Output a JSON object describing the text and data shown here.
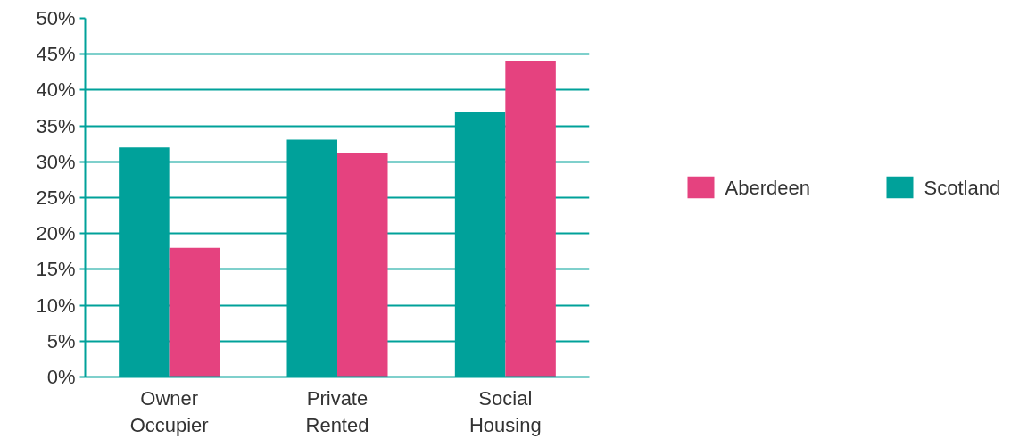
{
  "chart_data": {
    "type": "bar",
    "categories": [
      "Owner Occupier",
      "Private Rented",
      "Social Housing"
    ],
    "series": [
      {
        "name": "Scotland",
        "color": "#00a19a",
        "values": [
          32,
          33.1,
          37
        ]
      },
      {
        "name": "Aberdeen",
        "color": "#e5427f",
        "values": [
          18,
          31.2,
          44.1
        ]
      }
    ],
    "ylim": [
      0,
      50
    ],
    "yticks": [
      {
        "value": 0,
        "label": "0%"
      },
      {
        "value": 5,
        "label": "5%"
      },
      {
        "value": 10,
        "label": "10%"
      },
      {
        "value": 15,
        "label": "15%"
      },
      {
        "value": 20,
        "label": "20%"
      },
      {
        "value": 25,
        "label": "25%"
      },
      {
        "value": 30,
        "label": "30%"
      },
      {
        "value": 35,
        "label": "35%"
      },
      {
        "value": 40,
        "label": "40%"
      },
      {
        "value": 45,
        "label": "45%"
      },
      {
        "value": 50,
        "label": "50%"
      }
    ],
    "grid": "y",
    "legend": "right"
  }
}
